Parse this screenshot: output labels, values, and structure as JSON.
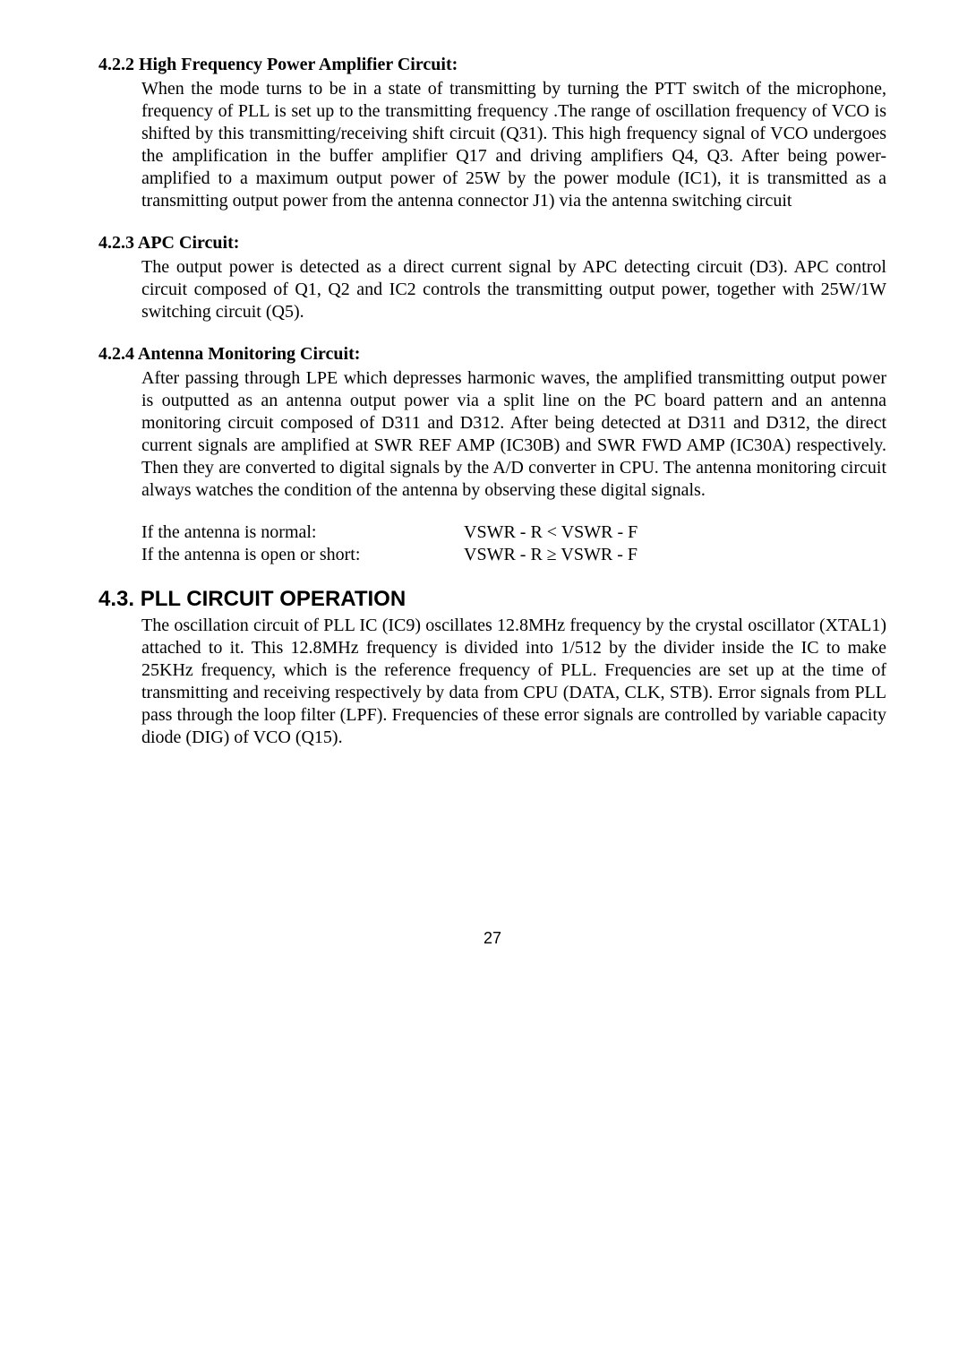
{
  "sec422": {
    "heading": "4.2.2 High Frequency Power Amplifier Circuit:",
    "body": "When the mode turns to be in a state of transmitting by turning the PTT switch of the microphone, frequency of PLL is set up to the transmitting frequency .The range of oscillation frequency of VCO is shifted by this transmitting/receiving shift circuit (Q31). This high frequency signal of VCO undergoes the amplification in the buffer amplifier Q17 and driving amplifiers Q4, Q3. After being power-amplified to a maximum output power of 25W by the power module (IC1), it is transmitted as a transmitting output power from the antenna connector J1) via the antenna switching circuit"
  },
  "sec423": {
    "heading": "4.2.3 APC Circuit:",
    "body": "The output power is detected as a direct current signal by APC detecting circuit (D3). APC control circuit composed of Q1, Q2 and IC2 controls the transmitting output power, together with 25W/1W switching circuit (Q5)."
  },
  "sec424": {
    "heading": "4.2.4 Antenna Monitoring Circuit:",
    "body": "After passing through LPE which depresses harmonic waves, the amplified transmitting output power is outputted as an antenna output power via a split line on the PC board pattern and an antenna monitoring circuit composed of D311 and D312. After being detected at D311 and D312, the direct current signals are amplified at SWR REF AMP (IC30B) and SWR FWD AMP (IC30A) respectively. Then they are converted to digital signals by the A/D converter in CPU. The antenna monitoring circuit always watches the condition of the antenna by observing these digital signals.",
    "cond1_left": "If the antenna is normal:",
    "cond1_right": "VSWR - R < VSWR - F",
    "cond2_left": "If the antenna is open or short:",
    "cond2_right_pre": "VSWR - R ",
    "cond2_right_sym": "≥",
    "cond2_right_post": " VSWR - F"
  },
  "sec43": {
    "heading": "4.3. PLL CIRCUIT OPERATION",
    "body": "The oscillation circuit of PLL IC (IC9) oscillates 12.8MHz frequency by the crystal oscillator (XTAL1) attached to it. This 12.8MHz frequency is divided into 1/512 by the divider inside the IC to make 25KHz frequency, which is the reference frequency of PLL. Frequencies are set up at the time of transmitting and receiving respectively by data from CPU (DATA, CLK, STB). Error signals from PLL pass through the loop filter (LPF). Frequencies of these error signals are controlled by variable capacity diode (DIG) of VCO (Q15)."
  },
  "page_number": "27"
}
